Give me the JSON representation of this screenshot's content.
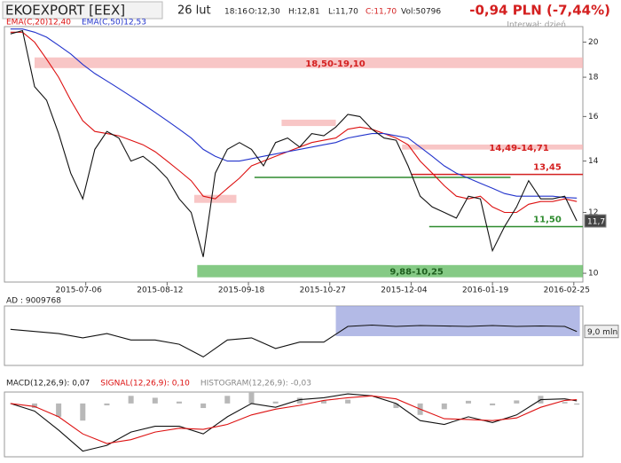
{
  "header": {
    "title": "EKOEXPORT [EEX]",
    "date": "26 lut",
    "time": "18:16",
    "open": "O:12,30",
    "high": "H:12,81",
    "low": "L:11,70",
    "close": "C:11,70",
    "volume": "Vol:50796",
    "change": "-0,94 PLN (-7,44%)",
    "interval": "Interwał: dzień"
  },
  "chart_data": [
    {
      "type": "line",
      "log": true,
      "xlim": [
        -1,
        191
      ],
      "ylim": [
        9.74,
        20.95
      ],
      "yticks": [
        10,
        12,
        14,
        16,
        18,
        20
      ],
      "xticks": [
        {
          "value": 26,
          "label": "2015-07-06"
        },
        {
          "value": 53,
          "label": "2015-08-12"
        },
        {
          "value": 80,
          "label": "2015-09-18"
        },
        {
          "value": 107,
          "label": "2015-10-27"
        },
        {
          "value": 134,
          "label": "2015-12-04"
        },
        {
          "value": 161,
          "label": "2016-01-19"
        },
        {
          "value": 188,
          "label": "2016-02-25"
        }
      ],
      "x": [
        1,
        5,
        9,
        13,
        17,
        21,
        25,
        29,
        33,
        37,
        41,
        45,
        49,
        53,
        57,
        61,
        65,
        69,
        73,
        77,
        81,
        85,
        89,
        93,
        97,
        101,
        105,
        109,
        113,
        117,
        121,
        125,
        129,
        133,
        137,
        141,
        145,
        149,
        153,
        157,
        161,
        165,
        169,
        173,
        177,
        181,
        185,
        189
      ],
      "zones": [
        {
          "label": "18,50-19,10",
          "low": 18.5,
          "high": 19.1,
          "from": 9,
          "to": 191,
          "color": "#f6b3b3"
        },
        {
          "low": 15.55,
          "high": 15.85,
          "from": 91,
          "to": 109,
          "color": "#f6b3b3"
        },
        {
          "label": "14,49-14,71",
          "low": 14.49,
          "high": 14.71,
          "from": 131,
          "to": 191,
          "color": "#f6b3b3"
        },
        {
          "low": 12.35,
          "high": 12.65,
          "from": 62,
          "to": 76,
          "color": "#f6b3b3"
        },
        {
          "label": "9,88-10,25",
          "low": 9.88,
          "high": 10.25,
          "from": 63,
          "to": 191,
          "color": "#5cb85c"
        }
      ],
      "lines": [
        {
          "value": 13.33,
          "from": 82,
          "to": 167,
          "color": "#2e8b2e"
        },
        {
          "label": "13,45",
          "value": 13.45,
          "from": 134,
          "to": 191,
          "color": "#d42020"
        },
        {
          "label": "11,50",
          "value": 11.5,
          "from": 140,
          "to": 191,
          "color": "#2e8b2e"
        }
      ],
      "last_label": {
        "value": 11.7,
        "label": "11,7"
      },
      "series": [
        {
          "name": "EMA(C,20)12,40",
          "color": "#dd1111",
          "values": [
            20.6,
            20.6,
            20.0,
            19.0,
            18.0,
            16.8,
            15.8,
            15.3,
            15.2,
            15.1,
            14.9,
            14.7,
            14.4,
            14.0,
            13.6,
            13.2,
            12.6,
            12.5,
            12.9,
            13.3,
            13.8,
            14.0,
            14.2,
            14.4,
            14.6,
            14.8,
            14.9,
            15.0,
            15.4,
            15.5,
            15.4,
            15.2,
            15.0,
            14.7,
            14.0,
            13.5,
            13.0,
            12.6,
            12.5,
            12.6,
            12.2,
            12.0,
            12.0,
            12.3,
            12.4,
            12.4,
            12.5,
            12.4
          ]
        },
        {
          "name": "EMA(C,50)12,53",
          "color": "#2233cc",
          "values": [
            20.8,
            20.8,
            20.6,
            20.3,
            19.8,
            19.3,
            18.7,
            18.2,
            17.8,
            17.4,
            17.0,
            16.6,
            16.2,
            15.8,
            15.4,
            15.0,
            14.5,
            14.2,
            14.0,
            14.0,
            14.1,
            14.2,
            14.3,
            14.4,
            14.5,
            14.6,
            14.7,
            14.8,
            15.0,
            15.1,
            15.2,
            15.2,
            15.1,
            15.0,
            14.6,
            14.2,
            13.8,
            13.5,
            13.3,
            13.1,
            12.9,
            12.7,
            12.6,
            12.6,
            12.6,
            12.6,
            12.55,
            12.53
          ]
        },
        {
          "color": "#111111",
          "values": [
            20.5,
            20.7,
            17.5,
            16.8,
            15.2,
            13.5,
            12.5,
            14.5,
            15.3,
            15.0,
            14.0,
            14.2,
            13.8,
            13.3,
            12.5,
            12.0,
            10.5,
            13.5,
            14.5,
            14.8,
            14.5,
            13.8,
            14.8,
            15.0,
            14.6,
            15.2,
            15.1,
            15.5,
            16.1,
            16.0,
            15.4,
            15.0,
            14.9,
            13.8,
            12.6,
            12.2,
            12.0,
            11.8,
            12.6,
            12.5,
            10.7,
            11.5,
            12.2,
            13.2,
            12.5,
            12.5,
            12.6,
            11.7
          ]
        }
      ]
    },
    {
      "type": "line",
      "xlim": [
        -1,
        191
      ],
      "ylim": [
        8.2,
        9.6
      ],
      "x": [
        1,
        9,
        17,
        25,
        33,
        41,
        49,
        57,
        65,
        73,
        81,
        89,
        97,
        105,
        113,
        121,
        129,
        137,
        145,
        153,
        161,
        169,
        177,
        185,
        189
      ],
      "zones": [
        {
          "low": 8.89,
          "high": 9.6,
          "from": 109,
          "to": 190,
          "color": "#9aa3dd"
        }
      ],
      "last_label": {
        "value": 9.0,
        "label": "9,0 mln"
      },
      "series": [
        {
          "name": "AD : 9009768",
          "color": "#111111",
          "values": [
            9.05,
            9.0,
            8.95,
            8.85,
            8.95,
            8.8,
            8.8,
            8.7,
            8.4,
            8.8,
            8.85,
            8.6,
            8.75,
            8.75,
            9.12,
            9.15,
            9.12,
            9.14,
            9.13,
            9.12,
            9.14,
            9.12,
            9.13,
            9.12,
            9.0
          ]
        }
      ]
    },
    {
      "type": "line",
      "xlim": [
        -1,
        191
      ],
      "ylim": [
        -1.4,
        0.3
      ],
      "x": [
        1,
        9,
        17,
        25,
        33,
        41,
        49,
        57,
        65,
        73,
        81,
        89,
        97,
        105,
        113,
        121,
        129,
        137,
        145,
        153,
        161,
        169,
        177,
        185,
        189
      ],
      "histogram": {
        "name": "HISTOGRAM(12,26,9): -0,03",
        "color": "#b8b8b8",
        "values": [
          0,
          -0.12,
          -0.35,
          -0.45,
          -0.05,
          0.2,
          0.15,
          0.05,
          -0.12,
          0.2,
          0.3,
          0.05,
          0.15,
          0.07,
          0.1,
          0,
          -0.12,
          -0.3,
          -0.15,
          0.07,
          -0.05,
          0.08,
          0.2,
          0.04,
          -0.03
        ]
      },
      "series": [
        {
          "name": "MACD(12,26,9): 0,07",
          "color": "#111111",
          "values": [
            0,
            -0.2,
            -0.7,
            -1.25,
            -1.1,
            -0.75,
            -0.6,
            -0.6,
            -0.8,
            -0.35,
            0.0,
            -0.1,
            0.1,
            0.15,
            0.25,
            0.2,
            0.0,
            -0.45,
            -0.55,
            -0.35,
            -0.5,
            -0.3,
            0.1,
            0.12,
            0.07
          ]
        },
        {
          "name": "SIGNAL(12,26,9): 0,10",
          "color": "#dd1111",
          "values": [
            0,
            -0.08,
            -0.35,
            -0.8,
            -1.05,
            -0.95,
            -0.75,
            -0.65,
            -0.68,
            -0.55,
            -0.3,
            -0.15,
            -0.05,
            0.08,
            0.15,
            0.2,
            0.12,
            -0.15,
            -0.4,
            -0.42,
            -0.45,
            -0.38,
            -0.1,
            0.08,
            0.1
          ]
        }
      ]
    }
  ]
}
